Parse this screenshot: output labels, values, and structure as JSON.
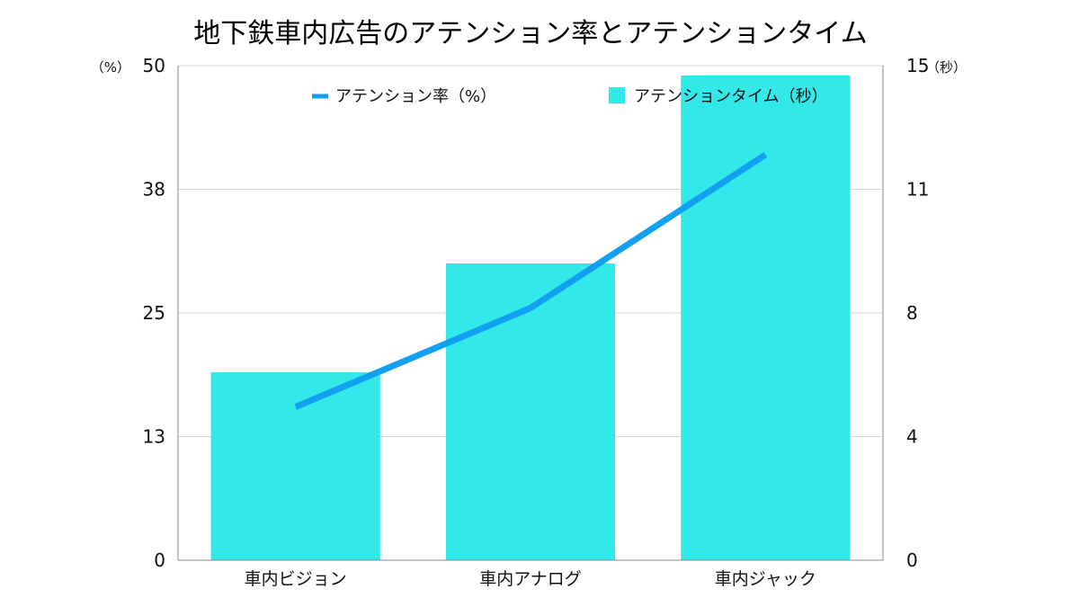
{
  "chart_data": {
    "type": "bar+line",
    "title": "地下鉄車内広告のアテンション率とアテンションタイム",
    "categories": [
      "車内ビジョン",
      "車内アナログ",
      "車内ジャック"
    ],
    "left_axis": {
      "unit": "（%）",
      "ticks": [
        "0",
        "13",
        "25",
        "38",
        "50"
      ],
      "range": [
        0,
        50
      ]
    },
    "right_axis": {
      "unit": "（秒）",
      "ticks": [
        "0",
        "4",
        "8",
        "11",
        "15"
      ],
      "range": [
        0,
        15
      ]
    },
    "series": [
      {
        "name": "アテンション率（%）",
        "type": "line",
        "axis": "left",
        "color": "#12A0F0",
        "values": [
          15.5,
          25.5,
          41
        ]
      },
      {
        "name": "アテンションタイム（秒）",
        "type": "bar",
        "axis": "right",
        "color": "#33E8E8",
        "values": [
          5.7,
          9.0,
          14.7
        ]
      }
    ],
    "grid": true,
    "legend_position": "top"
  }
}
